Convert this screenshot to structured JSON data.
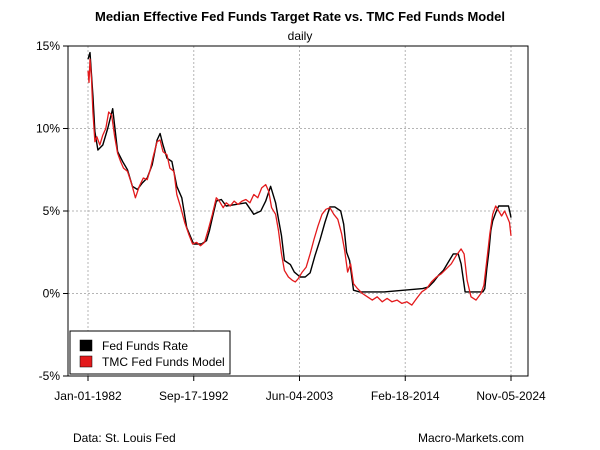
{
  "chart_data": {
    "type": "line",
    "title": "Median Effective Fed Funds Target Rate vs. TMC Fed Funds Model",
    "subtitle": "daily",
    "x_ticks": [
      "Jan-01-1982",
      "Sep-17-1992",
      "Jun-04-2003",
      "Feb-18-2014",
      "Nov-05-2024"
    ],
    "y_ticks": [
      "15%",
      "10%",
      "5%",
      "0%",
      "-5%"
    ],
    "ylim": [
      -5,
      15
    ],
    "xlim": [
      1982.0,
      2024.85
    ],
    "grid": true,
    "legend_position": "bottom-left",
    "series": [
      {
        "name": "Fed Funds Rate",
        "color": "#000000",
        "x": [
          1982.0,
          1982.2,
          1982.5,
          1982.7,
          1983.0,
          1983.5,
          1984.0,
          1984.5,
          1985.0,
          1985.5,
          1986.0,
          1986.5,
          1987.0,
          1987.5,
          1988.0,
          1988.5,
          1989.0,
          1989.3,
          1989.6,
          1990.0,
          1990.5,
          1991.0,
          1991.5,
          1992.0,
          1992.7,
          1993.5,
          1994.0,
          1994.3,
          1994.6,
          1995.0,
          1995.5,
          1996.0,
          1997.0,
          1998.0,
          1998.8,
          1999.5,
          2000.0,
          2000.5,
          2001.0,
          2001.3,
          2001.6,
          2001.9,
          2002.5,
          2002.9,
          2003.5,
          2004.0,
          2004.5,
          2005.0,
          2005.5,
          2006.0,
          2006.5,
          2007.0,
          2007.6,
          2007.9,
          2008.2,
          2008.5,
          2008.9,
          2009.5,
          2012.0,
          2015.9,
          2016.5,
          2017.0,
          2017.5,
          2018.0,
          2018.5,
          2019.0,
          2019.5,
          2019.8,
          2020.2,
          2021.0,
          2022.0,
          2022.2,
          2022.4,
          2022.6,
          2022.8,
          2023.0,
          2023.3,
          2023.6,
          2024.0,
          2024.6,
          2024.75,
          2024.85
        ],
        "y": [
          14.2,
          14.6,
          12.0,
          9.8,
          8.7,
          9.0,
          10.0,
          11.2,
          8.6,
          8.0,
          7.5,
          6.5,
          6.3,
          6.7,
          7.0,
          7.8,
          9.3,
          9.7,
          9.0,
          8.2,
          8.0,
          6.5,
          5.8,
          4.0,
          3.0,
          3.0,
          3.2,
          3.8,
          4.6,
          5.6,
          5.7,
          5.3,
          5.4,
          5.5,
          4.8,
          5.0,
          5.6,
          6.5,
          5.5,
          4.5,
          3.5,
          2.0,
          1.75,
          1.3,
          1.0,
          1.0,
          1.25,
          2.3,
          3.25,
          4.3,
          5.25,
          5.25,
          5.0,
          4.2,
          2.5,
          2.0,
          0.2,
          0.1,
          0.1,
          0.3,
          0.4,
          0.7,
          1.1,
          1.4,
          1.9,
          2.4,
          2.4,
          1.8,
          0.1,
          0.1,
          0.1,
          0.3,
          1.5,
          2.5,
          3.8,
          4.4,
          4.9,
          5.3,
          5.3,
          5.3,
          4.9,
          4.6
        ]
      },
      {
        "name": "TMC Fed Funds Model",
        "color": "#e31a1c",
        "x": [
          1982.0,
          1982.1,
          1982.2,
          1982.35,
          1982.5,
          1982.7,
          1982.9,
          1983.2,
          1983.5,
          1983.8,
          1984.1,
          1984.4,
          1984.7,
          1985.0,
          1985.3,
          1985.6,
          1986.0,
          1986.4,
          1986.8,
          1987.2,
          1987.6,
          1988.0,
          1988.3,
          1988.6,
          1989.0,
          1989.3,
          1989.6,
          1990.0,
          1990.3,
          1990.7,
          1991.0,
          1991.4,
          1991.8,
          1992.2,
          1992.6,
          1993.0,
          1993.4,
          1993.8,
          1994.2,
          1994.6,
          1995.0,
          1995.3,
          1995.7,
          1996.0,
          1996.4,
          1996.8,
          1997.2,
          1997.6,
          1998.0,
          1998.4,
          1998.8,
          1999.2,
          1999.6,
          2000.0,
          2000.3,
          2000.6,
          2001.0,
          2001.3,
          2001.6,
          2001.9,
          2002.3,
          2002.7,
          2003.0,
          2003.3,
          2003.7,
          2004.1,
          2004.5,
          2004.9,
          2005.3,
          2005.7,
          2006.1,
          2006.5,
          2006.9,
          2007.3,
          2007.7,
          2008.0,
          2008.3,
          2008.6,
          2008.9,
          2009.3,
          2009.8,
          2010.3,
          2010.8,
          2011.3,
          2011.8,
          2012.3,
          2012.8,
          2013.3,
          2013.8,
          2014.3,
          2014.8,
          2015.3,
          2015.8,
          2016.3,
          2016.8,
          2017.3,
          2017.8,
          2018.3,
          2018.8,
          2019.3,
          2019.8,
          2020.1,
          2020.4,
          2020.8,
          2021.3,
          2021.8,
          2022.1,
          2022.4,
          2022.7,
          2023.0,
          2023.3,
          2023.6,
          2023.9,
          2024.2,
          2024.5,
          2024.7,
          2024.85
        ],
        "y": [
          13.5,
          12.8,
          14.2,
          13.0,
          11.0,
          9.2,
          9.5,
          9.0,
          9.6,
          10.0,
          11.0,
          10.8,
          9.5,
          8.5,
          8.0,
          7.6,
          7.4,
          6.7,
          5.8,
          6.5,
          7.0,
          6.9,
          7.5,
          8.3,
          9.2,
          9.3,
          8.6,
          8.4,
          7.6,
          7.4,
          6.0,
          5.2,
          4.3,
          3.6,
          3.0,
          3.1,
          2.9,
          3.1,
          3.9,
          4.8,
          5.8,
          5.6,
          5.2,
          5.5,
          5.3,
          5.6,
          5.4,
          5.6,
          5.7,
          5.5,
          6.0,
          5.8,
          6.4,
          6.6,
          6.2,
          5.2,
          4.8,
          3.8,
          2.4,
          1.4,
          1.0,
          0.8,
          0.7,
          0.9,
          1.3,
          1.6,
          2.4,
          3.3,
          4.1,
          4.8,
          5.1,
          5.2,
          4.8,
          4.5,
          3.6,
          2.6,
          1.3,
          1.8,
          0.6,
          0.3,
          0.0,
          -0.2,
          -0.4,
          -0.2,
          -0.5,
          -0.3,
          -0.5,
          -0.4,
          -0.6,
          -0.5,
          -0.7,
          -0.3,
          0.1,
          0.3,
          0.7,
          1.0,
          1.2,
          1.5,
          1.8,
          2.3,
          2.7,
          2.4,
          0.8,
          -0.2,
          -0.4,
          0.0,
          0.5,
          2.0,
          3.6,
          4.8,
          5.3,
          5.0,
          4.7,
          5.0,
          4.6,
          4.3,
          3.5
        ]
      }
    ]
  },
  "footer": {
    "source": "Data: St. Louis Fed",
    "credit": "Macro-Markets.com"
  }
}
